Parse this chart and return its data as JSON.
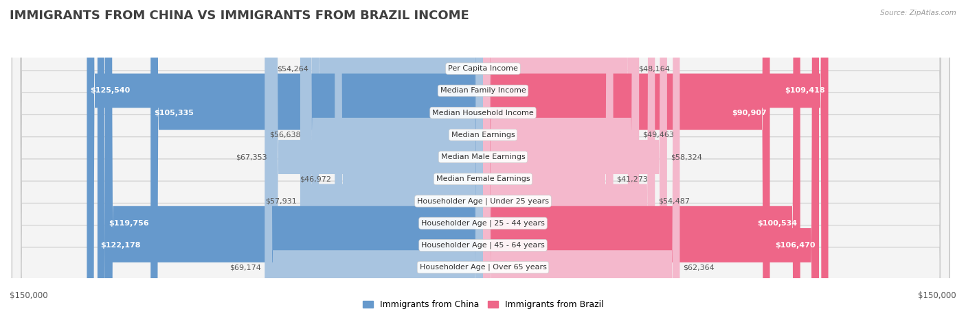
{
  "title": "IMMIGRANTS FROM CHINA VS IMMIGRANTS FROM BRAZIL INCOME",
  "source": "Source: ZipAtlas.com",
  "categories": [
    "Per Capita Income",
    "Median Family Income",
    "Median Household Income",
    "Median Earnings",
    "Median Male Earnings",
    "Median Female Earnings",
    "Householder Age | Under 25 years",
    "Householder Age | 25 - 44 years",
    "Householder Age | 45 - 64 years",
    "Householder Age | Over 65 years"
  ],
  "china_values": [
    54264,
    125540,
    105335,
    56638,
    67353,
    46972,
    57931,
    119756,
    122178,
    69174
  ],
  "brazil_values": [
    48164,
    109418,
    90907,
    49463,
    58324,
    41273,
    54487,
    100534,
    106470,
    62364
  ],
  "china_color_light": "#a8c4e0",
  "china_color_bold": "#6699cc",
  "brazil_color_light": "#f4b8cc",
  "brazil_color_bold": "#ee6688",
  "china_label": "Immigrants from China",
  "brazil_label": "Immigrants from Brazil",
  "max_value": 150000,
  "bold_threshold": 90000,
  "title_fontsize": 13,
  "value_fontsize": 8,
  "cat_fontsize": 8,
  "legend_fontsize": 9,
  "axis_fontsize": 8.5
}
